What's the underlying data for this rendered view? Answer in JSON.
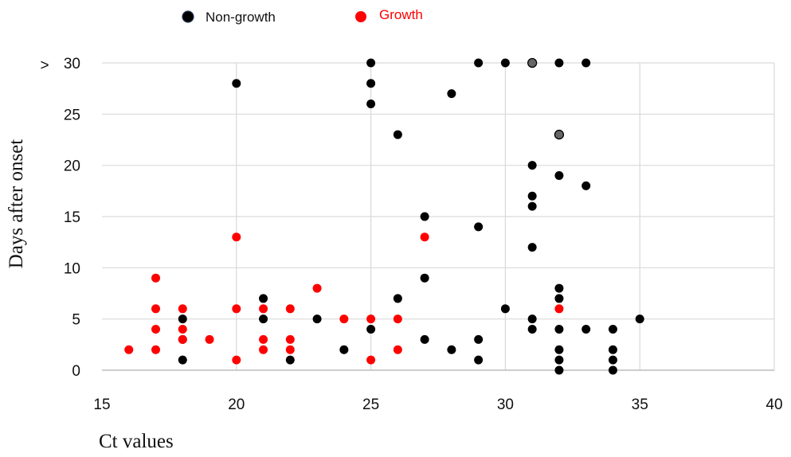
{
  "chart_data": {
    "type": "scatter",
    "title": "",
    "xlabel": "Ct values",
    "ylabel": "Days after onset",
    "xlim": [
      15,
      40
    ],
    "ylim": [
      0,
      30
    ],
    "x_ticks": [
      "15",
      "20",
      "25",
      "30",
      "35",
      "40"
    ],
    "y_ticks": [
      "0",
      "5",
      "10",
      "15",
      "20",
      "25",
      "30"
    ],
    "y_top_marker": ">",
    "grid": true,
    "legend_position": "top",
    "series": [
      {
        "name": "Non-growth",
        "color": "#000000",
        "points": [
          [
            18,
            5
          ],
          [
            18,
            3
          ],
          [
            18,
            1
          ],
          [
            20,
            28
          ],
          [
            21,
            7
          ],
          [
            21,
            5
          ],
          [
            22,
            1
          ],
          [
            23,
            5
          ],
          [
            24,
            2
          ],
          [
            25,
            30
          ],
          [
            25,
            28
          ],
          [
            25,
            26
          ],
          [
            25,
            4
          ],
          [
            26,
            23
          ],
          [
            26,
            7
          ],
          [
            27,
            15
          ],
          [
            27,
            9
          ],
          [
            27,
            3
          ],
          [
            28,
            27
          ],
          [
            28,
            2
          ],
          [
            29,
            30
          ],
          [
            29,
            14
          ],
          [
            29,
            3
          ],
          [
            29,
            1
          ],
          [
            30,
            30
          ],
          [
            30,
            6
          ],
          [
            31,
            20
          ],
          [
            31,
            17
          ],
          [
            31,
            16
          ],
          [
            31,
            12
          ],
          [
            31,
            5
          ],
          [
            31,
            4
          ],
          [
            32,
            30
          ],
          [
            32,
            19
          ],
          [
            32,
            8
          ],
          [
            32,
            7
          ],
          [
            32,
            4
          ],
          [
            32,
            2
          ],
          [
            32,
            1
          ],
          [
            32,
            0
          ],
          [
            33,
            30
          ],
          [
            33,
            18
          ],
          [
            33,
            4
          ],
          [
            34,
            4
          ],
          [
            34,
            2
          ],
          [
            34,
            1
          ],
          [
            34,
            0
          ],
          [
            35,
            5
          ]
        ]
      },
      {
        "name": "Growth",
        "color": "#ff0000",
        "points": [
          [
            16,
            2
          ],
          [
            17,
            9
          ],
          [
            17,
            6
          ],
          [
            17,
            4
          ],
          [
            17,
            2
          ],
          [
            18,
            6
          ],
          [
            18,
            4
          ],
          [
            18,
            3
          ],
          [
            19,
            3
          ],
          [
            20,
            13
          ],
          [
            20,
            6
          ],
          [
            20,
            1
          ],
          [
            21,
            6
          ],
          [
            21,
            3
          ],
          [
            21,
            2
          ],
          [
            22,
            6
          ],
          [
            22,
            3
          ],
          [
            22,
            2
          ],
          [
            23,
            8
          ],
          [
            24,
            5
          ],
          [
            25,
            5
          ],
          [
            25,
            1
          ],
          [
            26,
            5
          ],
          [
            26,
            2
          ],
          [
            27,
            13
          ],
          [
            32,
            6
          ]
        ]
      },
      {
        "name": "",
        "color": "#666666",
        "points": [
          [
            31,
            30
          ],
          [
            32,
            23
          ]
        ]
      }
    ]
  }
}
